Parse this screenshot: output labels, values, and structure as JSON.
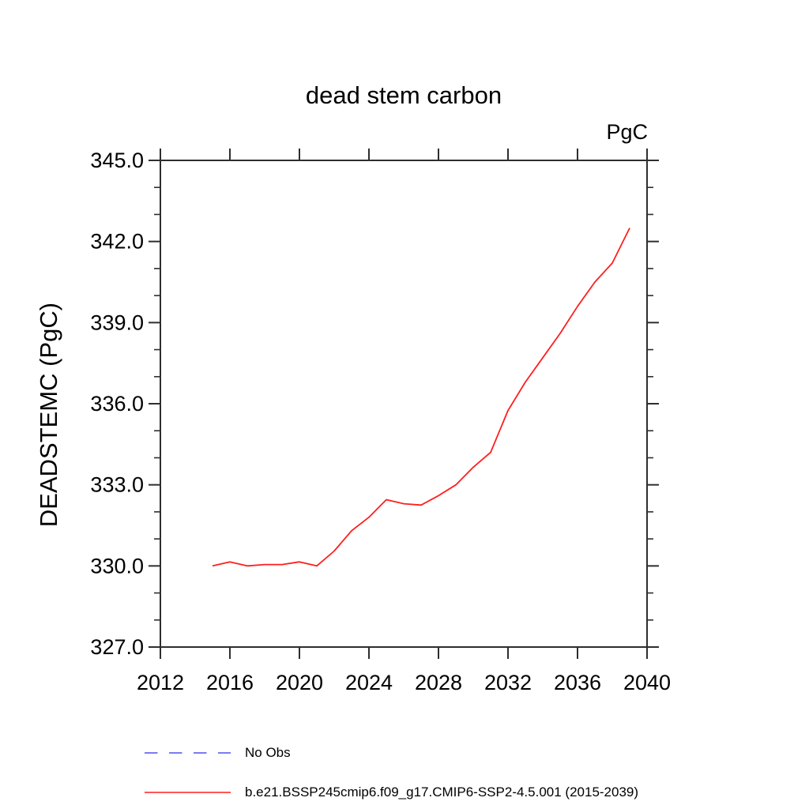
{
  "title": "dead stem carbon",
  "units_label": "PgC",
  "y_axis_title": "DEADSTEMC  (PgC)",
  "colors": {
    "series_red": "#ff1e1e",
    "no_obs_blue": "#7b7bee",
    "axis": "#2e2e2e",
    "text": "#000000",
    "background": "#ffffff"
  },
  "legend": {
    "entries": [
      {
        "label": "No Obs",
        "color": "#7b7bee",
        "style": "dashed"
      },
      {
        "label": "b.e21.BSSP245cmip6.f09_g17.CMIP6-SSP2-4.5.001 (2015-2039)",
        "color": "#ff1e1e",
        "style": "solid"
      }
    ]
  },
  "chart_data": {
    "type": "line",
    "title": "dead stem carbon",
    "xlabel": "",
    "ylabel": "DEADSTEMC  (PgC)",
    "units": "PgC",
    "xlim": [
      2012,
      2040
    ],
    "ylim": [
      327.0,
      345.0
    ],
    "x_major_step": 4,
    "y_major_step": 3,
    "y_minor_step": 1,
    "grid": false,
    "legend_position": "bottom-left",
    "x_tick_labels": [
      "2012",
      "2016",
      "2020",
      "2024",
      "2028",
      "2032",
      "2036",
      "2040"
    ],
    "y_tick_labels": [
      "345.0",
      "342.0",
      "339.0",
      "336.0",
      "333.0",
      "330.0",
      "327.0"
    ],
    "series": [
      {
        "name": "b.e21.BSSP245cmip6.f09_g17.CMIP6-SSP2-4.5.001 (2015-2039)",
        "color": "#ff1e1e",
        "style": "solid",
        "x": [
          2015,
          2016,
          2017,
          2018,
          2019,
          2020,
          2021,
          2022,
          2023,
          2024,
          2025,
          2026,
          2027,
          2028,
          2029,
          2030,
          2031,
          2032,
          2033,
          2034,
          2035,
          2036,
          2037,
          2038,
          2039
        ],
        "values": [
          330.0,
          330.15,
          330.0,
          330.05,
          330.05,
          330.15,
          330.0,
          330.55,
          331.3,
          331.8,
          332.45,
          332.3,
          332.25,
          332.6,
          333.0,
          333.65,
          334.2,
          335.75,
          336.8,
          337.7,
          338.6,
          339.6,
          340.5,
          341.2,
          342.5
        ]
      },
      {
        "name": "No Obs",
        "color": "#7b7bee",
        "style": "dashed",
        "x": [],
        "values": []
      }
    ]
  }
}
